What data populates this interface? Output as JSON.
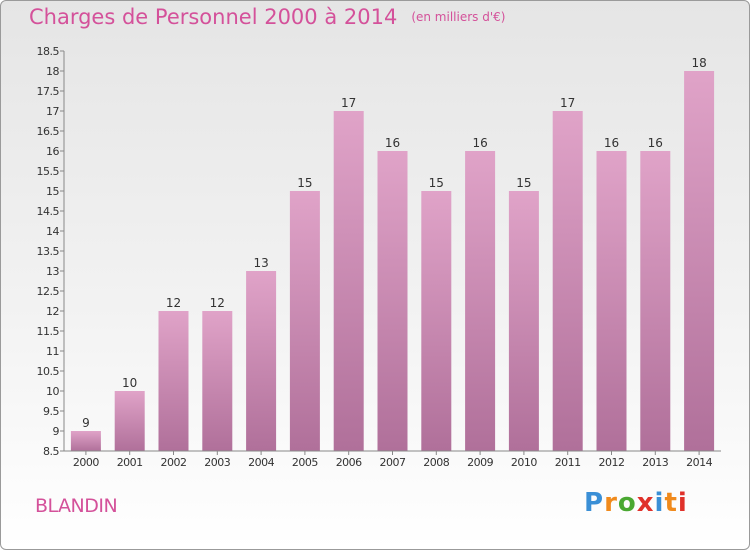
{
  "title": "Charges de Personnel 2000 à 2014",
  "subtitle": "(en milliers d'€)",
  "commune": "BLANDIN",
  "logo": {
    "text": "Proxiti",
    "colors": [
      "#3a8fd6",
      "#f08a1c",
      "#4aa832",
      "#e0312a",
      "#3a8fd6",
      "#f08a1c",
      "#e0312a"
    ]
  },
  "chart_data": {
    "type": "bar",
    "title": "Charges de Personnel 2000 à 2014",
    "subtitle": "(en milliers d'€)",
    "categories": [
      "2000",
      "2001",
      "2002",
      "2003",
      "2004",
      "2005",
      "2006",
      "2007",
      "2008",
      "2009",
      "2010",
      "2011",
      "2012",
      "2013",
      "2014"
    ],
    "values": [
      9,
      10,
      12,
      12,
      13,
      15,
      17,
      16,
      15,
      16,
      15,
      17,
      16,
      16,
      18
    ],
    "labels": [
      "9",
      "10",
      "12",
      "12",
      "13",
      "15",
      "17",
      "16",
      "15",
      "16",
      "15",
      "17",
      "16",
      "16",
      "18"
    ],
    "yticks": [
      "8.5",
      "9",
      "9.5",
      "10",
      "10.5",
      "11",
      "11.5",
      "12",
      "12.5",
      "13",
      "13.5",
      "14",
      "14.5",
      "15",
      "15.5",
      "16",
      "16.5",
      "17",
      "17.5",
      "18",
      "18.5"
    ],
    "ylim": [
      8.5,
      18.5
    ],
    "grid": false,
    "bar_color": "#e0a3c8",
    "bar_color_dark": "#b0709a"
  }
}
